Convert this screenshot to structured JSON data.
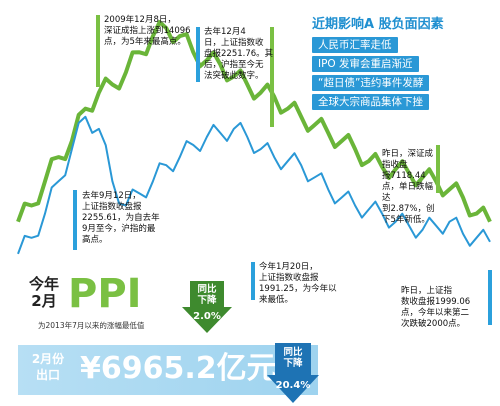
{
  "chart_data": {
    "type": "line",
    "title": "",
    "xlabel": "",
    "ylabel": "",
    "series": [
      {
        "name": "",
        "color": "#6ab539",
        "values": [
          100,
          120,
          150,
          180,
          200,
          240,
          260,
          270,
          285,
          310,
          330,
          340,
          330,
          310,
          300,
          295,
          280,
          270,
          260,
          255,
          240,
          230,
          220,
          210,
          200,
          190,
          175,
          168,
          165,
          160,
          155,
          150,
          140,
          130,
          110,
          100
        ]
      },
      {
        "name": "",
        "color": "#2a98d6",
        "values": [
          60,
          80,
          110,
          150,
          190,
          230,
          215,
          150,
          120,
          135,
          150,
          170,
          180,
          195,
          205,
          210,
          215,
          205,
          190,
          180,
          175,
          170,
          155,
          140,
          130,
          120,
          115,
          110,
          100,
          95,
          90,
          95,
          100,
          85,
          80,
          75
        ]
      }
    ]
  },
  "factors": {
    "title": "近期影响A 股负面因素",
    "items": [
      "人民币汇率走低",
      "IPO 发审会重启渐近",
      "“超日债”违约事件发酵",
      "全球大宗商品集体下挫"
    ]
  },
  "annotations": {
    "a1": "2009年12月8日，\n深证成指上涨到14096\n点，为5年来最高点。",
    "a2": "去年12月4\n日，上证指数收\n盘报2251.76。其\n后，沪指至今无\n法突破此数字。",
    "a3": "去年9月12日，\n上证指数收盘报\n2255.61，为自去年\n9月至今，沪指的最\n高点。",
    "a4": "昨日，深证成指收盘\n报7118.44点，单日跌幅达\n到2.87%，创下5年新低。",
    "a5": "今年1月20日，\n上证指数收盘报\n1991.25，为今年以\n来最低。",
    "a6": "昨日，上证指\n数收盘报1999.06\n点，今年以来第二\n次跌破2000点。"
  },
  "ppi": {
    "period": "今年\n2月",
    "label": "PPI",
    "change_label": "同比\n下降",
    "change_value": "2.0%",
    "note": "为2013年7月以来的涨幅最低值"
  },
  "exports": {
    "period": "2月份\n出口",
    "value": "¥6965.2亿元",
    "change_label": "同比\n下降",
    "change_value": "20.4%"
  }
}
